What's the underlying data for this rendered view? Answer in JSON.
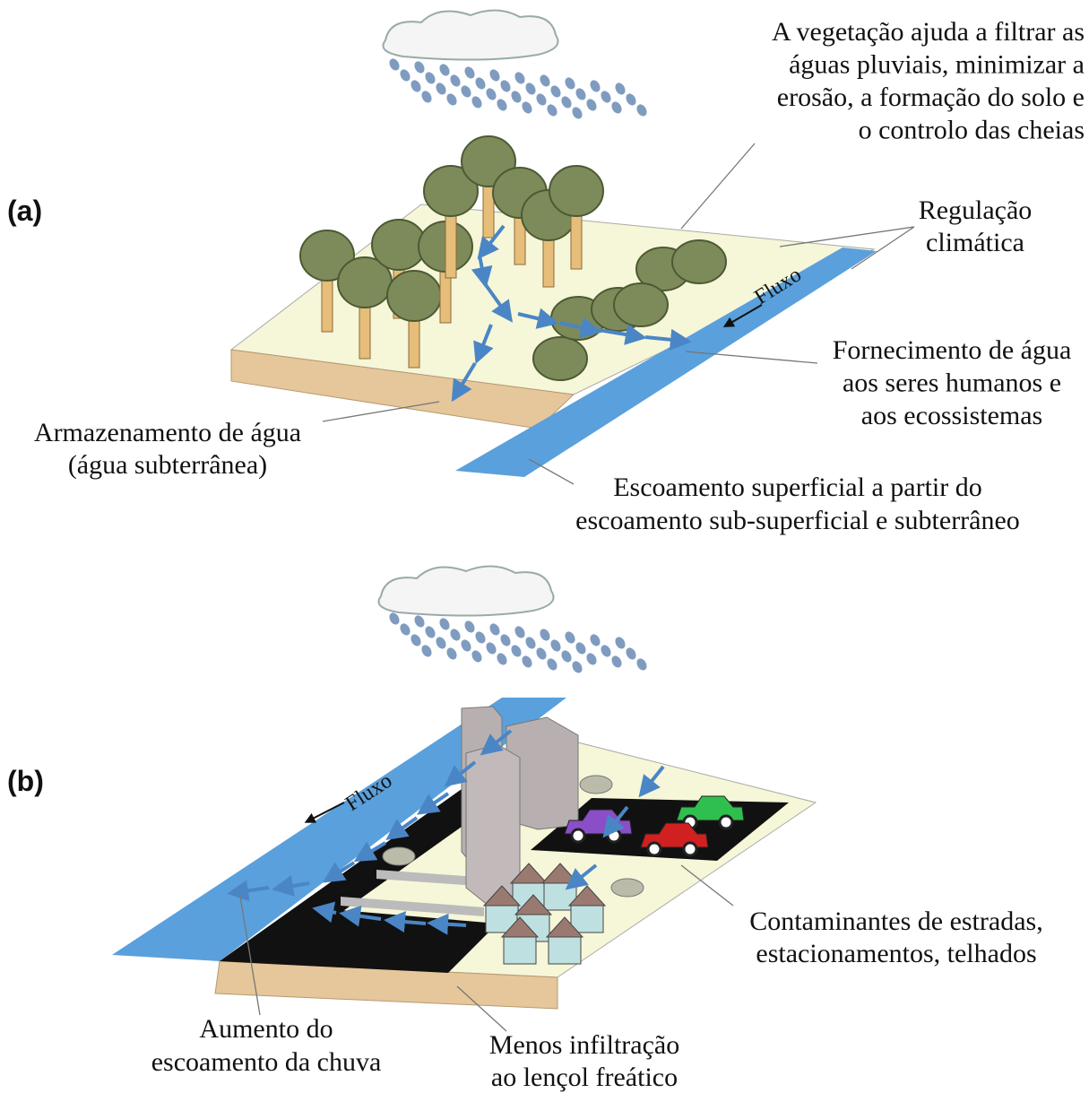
{
  "panels": [
    {
      "label": "(a)",
      "flow": "Fluxo",
      "annotations": [
        {
          "lines": [
            "A vegetação ajuda a filtrar as",
            "águas pluviais, minimizar a",
            "erosão, a formação do solo e",
            "o controlo das cheias"
          ]
        },
        {
          "lines": [
            "Regulação",
            "climática"
          ]
        },
        {
          "lines": [
            "Fornecimento de água",
            "aos seres humanos e",
            "aos ecossistemas"
          ]
        },
        {
          "lines": [
            "Armazenamento de água",
            "(água subterrânea)"
          ]
        },
        {
          "lines": [
            "Escoamento superficial a partir do",
            "escoamento sub-superficial e subterrâneo"
          ]
        }
      ]
    },
    {
      "label": "(b)",
      "flow": "Fluxo",
      "annotations": [
        {
          "lines": [
            "Contaminantes de estradas,",
            "estacionamentos, telhados"
          ]
        },
        {
          "lines": [
            "Aumento do",
            "escoamento da chuva"
          ]
        },
        {
          "lines": [
            "Menos infiltração",
            "ao lençol freático"
          ]
        }
      ]
    }
  ]
}
